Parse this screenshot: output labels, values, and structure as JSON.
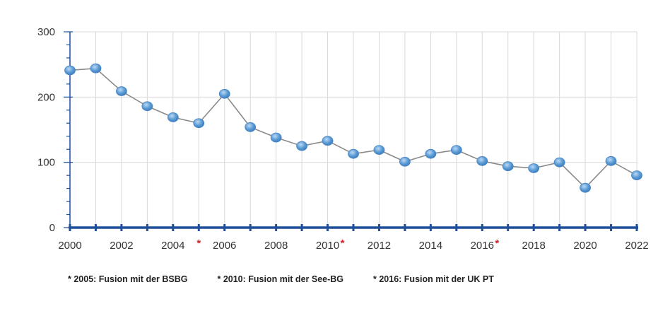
{
  "chart_data": {
    "type": "line",
    "x": [
      2000,
      2001,
      2002,
      2003,
      2004,
      2005,
      2006,
      2007,
      2008,
      2009,
      2010,
      2011,
      2012,
      2013,
      2014,
      2015,
      2016,
      2017,
      2018,
      2019,
      2020,
      2021,
      2022
    ],
    "series": [
      {
        "values": [
          241,
          244,
          209,
          186,
          169,
          160,
          205,
          154,
          138,
          125,
          133,
          113,
          119,
          101,
          113,
          119,
          102,
          94,
          91,
          100,
          61,
          102,
          80
        ]
      }
    ],
    "xlim": [
      2000,
      2022
    ],
    "ylim": [
      0,
      300
    ],
    "x_tick_labels": [
      "2000",
      "2002",
      "2004",
      "2006",
      "2008",
      "2010",
      "2012",
      "2014",
      "2016",
      "2018",
      "2020",
      "2022"
    ],
    "y_tick_labels": [
      "0",
      "100",
      "200",
      "300"
    ],
    "marked_years": [
      {
        "label": "*",
        "year": 2005
      },
      {
        "label": "*",
        "year": 2010
      },
      {
        "label": "*",
        "year": 2016
      }
    ],
    "grid": true,
    "title": "",
    "xlabel": "",
    "ylabel": "",
    "colors": {
      "line": "#8a8a8a",
      "marker": "#5b9bd5",
      "axis": "#1f4e9b",
      "grid": "#d9d9d9",
      "star": "#d9262c"
    }
  },
  "footnotes": [
    "* 2005: Fusion mit der BSBG",
    "* 2010: Fusion mit der See-BG",
    "* 2016: Fusion mit der UK PT"
  ]
}
